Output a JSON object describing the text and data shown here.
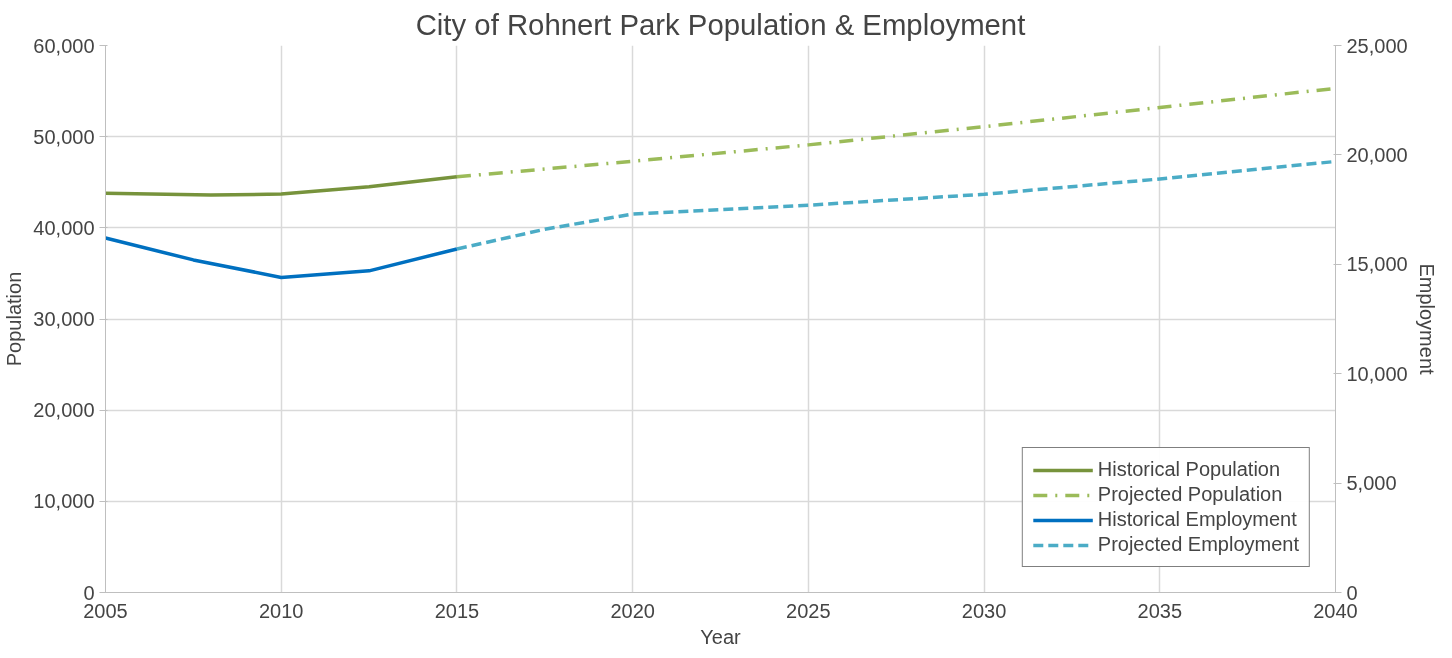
{
  "chart_data": {
    "type": "line",
    "title": "City of Rohnert Park Population & Employment",
    "xlabel": "Year",
    "ylabel": "Population",
    "y2label": "Employment",
    "xlim": [
      2005,
      2040
    ],
    "xticks": [
      2005,
      2010,
      2015,
      2020,
      2025,
      2030,
      2035,
      2040
    ],
    "ylim": [
      0,
      60000
    ],
    "yticks": [
      {
        "value": 0,
        "label": "0"
      },
      {
        "value": 10000,
        "label": "10,000"
      },
      {
        "value": 20000,
        "label": "20,000"
      },
      {
        "value": 30000,
        "label": "30,000"
      },
      {
        "value": 40000,
        "label": "40,000"
      },
      {
        "value": 50000,
        "label": "50,000"
      },
      {
        "value": 60000,
        "label": "60,000"
      }
    ],
    "y2lim": [
      0,
      25000
    ],
    "y2ticks": [
      {
        "value": 0,
        "label": "0"
      },
      {
        "value": 5000,
        "label": "5,000"
      },
      {
        "value": 10000,
        "label": "10,000"
      },
      {
        "value": 15000,
        "label": "15,000"
      },
      {
        "value": 20000,
        "label": "20,000"
      },
      {
        "value": 25000,
        "label": "25,000"
      }
    ],
    "grid": true,
    "legend": "bottom right",
    "marker": "none",
    "series": [
      {
        "name": "Historical Population",
        "color": "#77933c",
        "line_style": "solid",
        "x": [
          2005,
          2008,
          2010,
          2012.5,
          2015
        ],
        "values": [
          43800,
          43600,
          43700,
          44500,
          45600
        ]
      },
      {
        "name": "Projected Population",
        "color": "#9bbb59",
        "line_style": "dashdot",
        "x": [
          2015,
          2020,
          2025,
          2030,
          2035,
          2040
        ],
        "values": [
          45600,
          47300,
          49100,
          51100,
          53200,
          55300
        ]
      },
      {
        "name": "Historical Employment",
        "color": "#0070c0",
        "line_style": "solid",
        "axis": "y2",
        "x": [
          2005,
          2007.5,
          2010,
          2012.5,
          2015
        ],
        "values": [
          16200,
          15200,
          14400,
          14700,
          15700
        ]
      },
      {
        "name": "Projected Employment",
        "color": "#4bacc6",
        "line_style": "dashed",
        "axis": "y2",
        "x": [
          2015,
          2017.5,
          2020,
          2025,
          2030,
          2035,
          2040
        ],
        "values": [
          15700,
          16600,
          17300,
          17700,
          18200,
          18900,
          19700
        ]
      }
    ]
  }
}
